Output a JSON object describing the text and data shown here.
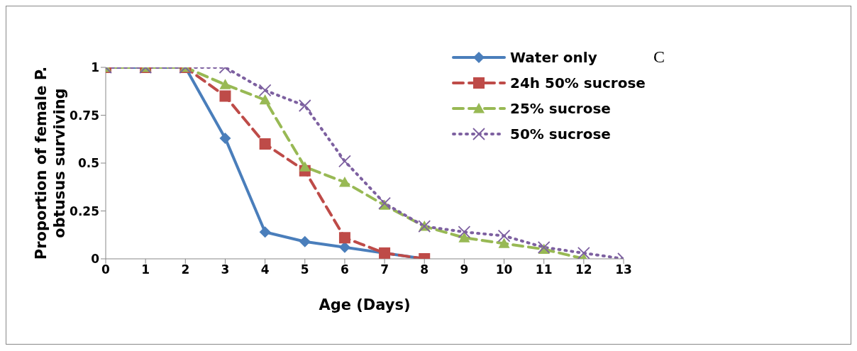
{
  "chart_data": {
    "type": "line",
    "xlabel": "Age (Days)",
    "ylabel": "Proportion of female P. obtusus surviving",
    "x": [
      0,
      1,
      2,
      3,
      4,
      5,
      6,
      7,
      8,
      9,
      10,
      11,
      12,
      13
    ],
    "series": [
      {
        "name": "Water only",
        "color": "#4a7ebb",
        "marker": "diamond",
        "line_style": "solid",
        "values": [
          1,
          1,
          1,
          0.63,
          0.14,
          0.09,
          0.06,
          null,
          0,
          null,
          null,
          null,
          null,
          null
        ]
      },
      {
        "name": "24h 50% sucrose",
        "color": "#be4b48",
        "marker": "square",
        "line_style": "dashed",
        "values": [
          1,
          1,
          1,
          0.85,
          0.6,
          0.46,
          0.11,
          0.03,
          0,
          null,
          null,
          null,
          null,
          null
        ]
      },
      {
        "name": "25% sucrose",
        "color": "#98b954",
        "marker": "triangle",
        "line_style": "dashed",
        "values": [
          1,
          1,
          1,
          0.91,
          0.83,
          0.48,
          0.4,
          0.28,
          0.17,
          0.11,
          0.08,
          0.05,
          0,
          null
        ]
      },
      {
        "name": "50% sucrose",
        "color": "#7d60a0",
        "marker": "cross",
        "line_style": "dotted",
        "values": [
          1,
          1,
          1,
          1,
          0.88,
          0.8,
          0.51,
          0.29,
          0.17,
          0.14,
          0.12,
          0.06,
          0.03,
          0
        ]
      }
    ],
    "xlim": [
      0,
      13
    ],
    "xticks": [
      0,
      1,
      2,
      3,
      4,
      5,
      6,
      7,
      8,
      9,
      10,
      11,
      12,
      13
    ],
    "ylim": [
      0,
      1
    ],
    "yticks": [
      0,
      0.25,
      0.5,
      0.75,
      1
    ],
    "grid": false,
    "legend": "top right",
    "annotations": [
      "C"
    ]
  }
}
